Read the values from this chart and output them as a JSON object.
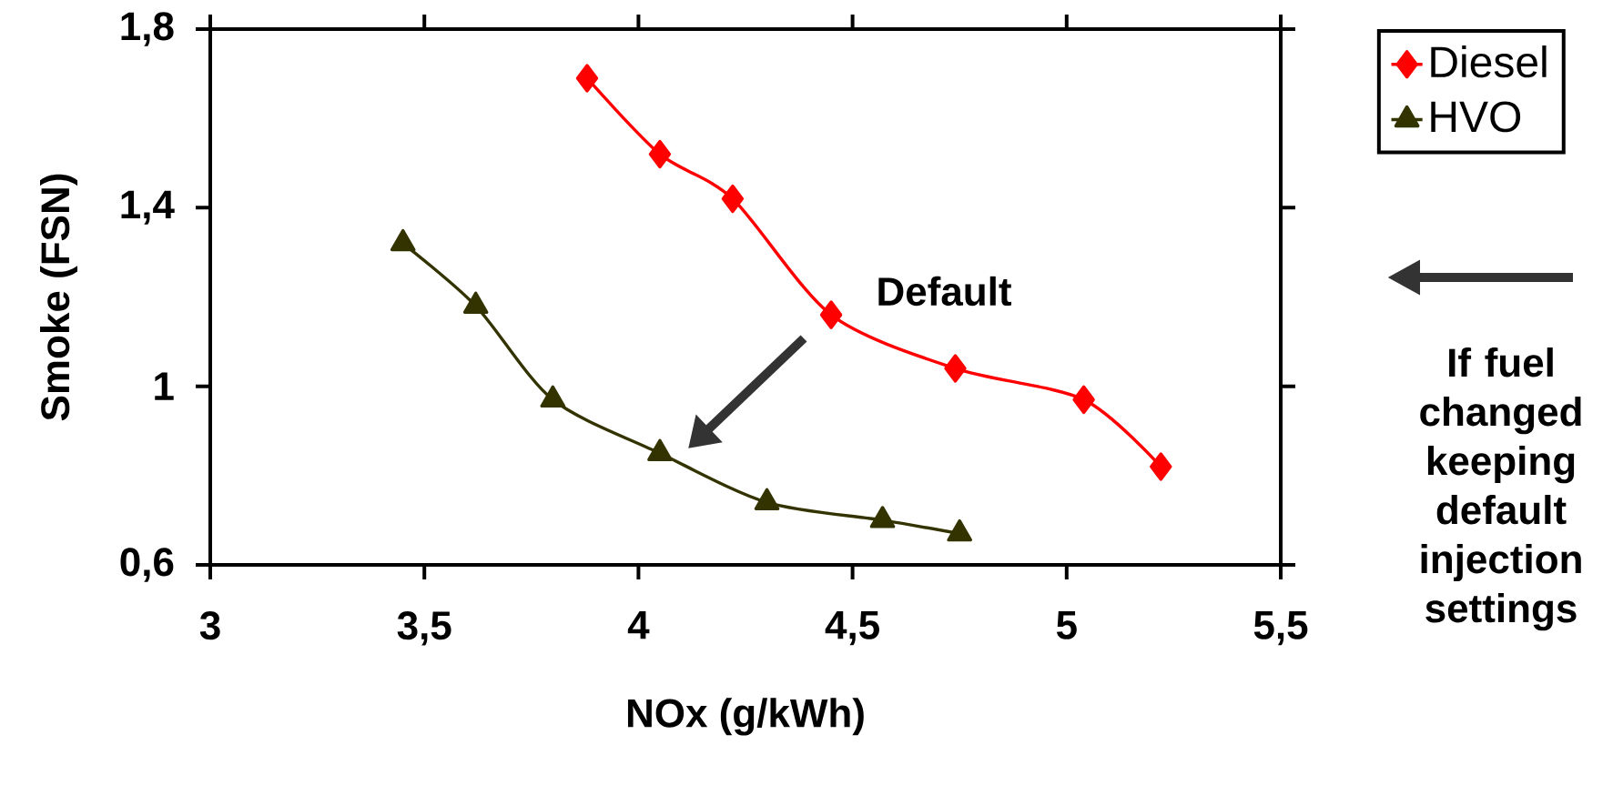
{
  "chart_data": {
    "type": "line",
    "xlabel": "NOx (g/kWh)",
    "ylabel": "Smoke (FSN)",
    "series": [
      {
        "name": "Diesel",
        "color": "#ff0000",
        "marker": "diamond",
        "x": [
          3.88,
          4.05,
          4.22,
          4.45,
          4.74,
          5.04,
          5.22
        ],
        "values": [
          1.69,
          1.52,
          1.42,
          1.16,
          1.04,
          0.97,
          0.82
        ]
      },
      {
        "name": "HVO",
        "color": "#333300",
        "marker": "triangle",
        "x": [
          3.45,
          3.62,
          3.8,
          4.05,
          4.3,
          4.57,
          4.75
        ],
        "values": [
          1.32,
          1.18,
          0.97,
          0.85,
          0.74,
          0.7,
          0.67
        ]
      }
    ],
    "xlim": [
      3,
      5.5
    ],
    "xticks": [
      3,
      {
        "value": 3.5,
        "label": "3,5"
      },
      4,
      {
        "value": 4.5,
        "label": "4,5"
      },
      5,
      {
        "value": 5.5,
        "label": "5,5"
      }
    ],
    "ylim": [
      0.6,
      1.8
    ],
    "yticks": [
      {
        "value": 0.6,
        "label": "0,6"
      },
      1,
      {
        "value": 1.4,
        "label": "1,4"
      },
      {
        "value": 1.8,
        "label": "1,8"
      }
    ],
    "grid": false,
    "legend": "top right",
    "line_style": "solid",
    "annotations": [
      "Default",
      "If fuel changed keeping default injection settings"
    ]
  }
}
